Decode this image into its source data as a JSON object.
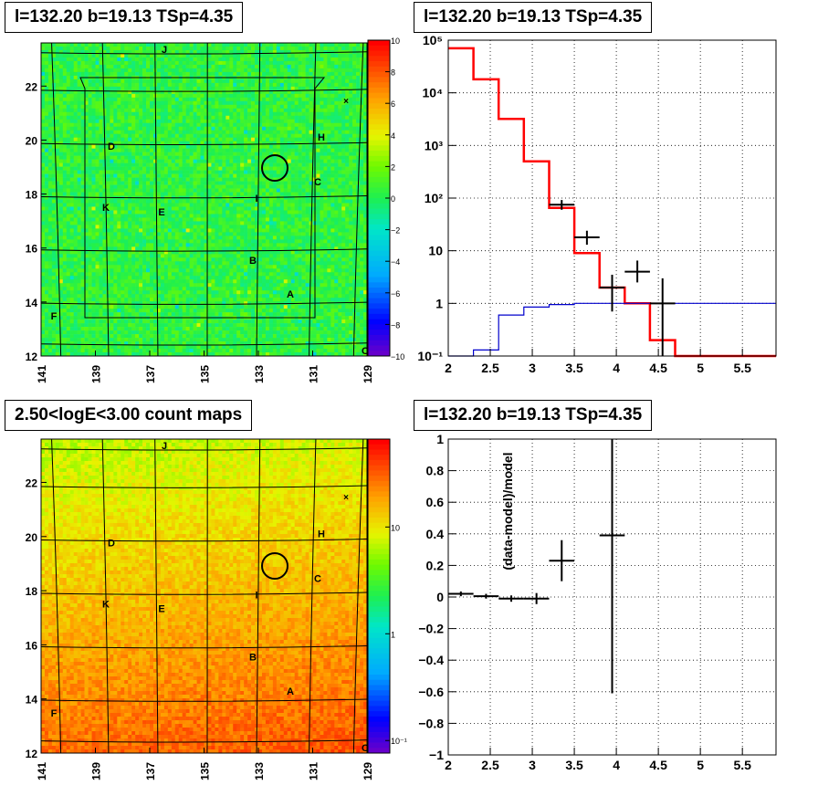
{
  "titles": {
    "tl": "l=132.20 b=19.13 TSp=4.35",
    "tr": "l=132.20 b=19.13 TSp=4.35",
    "bl": "2.50<logE<3.00 count maps",
    "br": "l=132.20 b=19.13 TSp=4.35"
  },
  "colors": {
    "model": "#ff0000",
    "background": "#0000cc",
    "data": "#000000",
    "grid": "#000000"
  },
  "chart_data": [
    {
      "type": "heatmap",
      "name": "significance map",
      "x_ticks": [
        "141",
        "139",
        "137",
        "135",
        "133",
        "131",
        "129"
      ],
      "y_ticks": [
        "12",
        "14",
        "16",
        "18",
        "20",
        "22"
      ],
      "xlim": [
        141,
        129
      ],
      "ylim": [
        12,
        23.6
      ],
      "colorbar_ticks": [
        "10",
        "8",
        "6",
        "4",
        "2",
        "0",
        "−2",
        "−4",
        "−6",
        "−8",
        "−10"
      ],
      "zlim": [
        -10,
        10
      ],
      "labels": [
        "J",
        "D",
        "H",
        "C",
        "K",
        "E",
        "I",
        "B",
        "A",
        "F",
        "×",
        "C"
      ]
    },
    {
      "type": "line",
      "name": "energy spectrum",
      "log_y": true,
      "xlim": [
        2,
        5.9
      ],
      "ylim": [
        0.1,
        100000
      ],
      "x_ticks": [
        "2",
        "2.5",
        "3",
        "3.5",
        "4",
        "4.5",
        "5",
        "5.5"
      ],
      "y_ticks": [
        "10⁵",
        "10⁴",
        "10³",
        "10²",
        "10",
        "1",
        "10⁻¹"
      ],
      "grid": true,
      "series": [
        {
          "kind": "model_step",
          "edges": [
            2.0,
            2.3,
            2.6,
            2.9,
            3.2,
            3.5,
            3.8,
            4.1,
            4.4,
            4.7,
            5.9
          ],
          "values": [
            70000,
            18000,
            3200,
            500,
            65,
            9,
            2,
            1,
            0.2,
            0.1
          ]
        },
        {
          "kind": "background_step",
          "edges": [
            2.0,
            2.3,
            2.6,
            2.9,
            3.2,
            3.5,
            3.8,
            4.1,
            4.4,
            4.7,
            5.9
          ],
          "values": [
            0.07,
            0.13,
            0.6,
            0.85,
            0.95,
            1,
            1,
            1,
            1,
            1
          ]
        },
        {
          "kind": "data_points",
          "x": [
            3.35,
            3.65,
            3.95,
            4.25,
            4.55
          ],
          "y": [
            75,
            18,
            2,
            4,
            1
          ],
          "xerr": [
            0.15,
            0.15,
            0.15,
            0.15,
            0.15
          ],
          "ylo": [
            60,
            13,
            0.7,
            2.5,
            0.1
          ],
          "yhi": [
            92,
            24,
            3.5,
            6.5,
            3
          ]
        }
      ]
    },
    {
      "type": "heatmap",
      "name": "count map",
      "x_ticks": [
        "141",
        "139",
        "137",
        "135",
        "133",
        "131",
        "129"
      ],
      "y_ticks": [
        "12",
        "14",
        "16",
        "18",
        "20",
        "22"
      ],
      "xlim": [
        141,
        129
      ],
      "ylim": [
        12,
        23.6
      ],
      "colorbar_ticks": [
        "10",
        "1",
        "10⁻¹"
      ],
      "log_z": true,
      "labels": [
        "J",
        "D",
        "H",
        "C",
        "K",
        "E",
        "I",
        "B",
        "A",
        "F",
        "×",
        "C"
      ]
    },
    {
      "type": "scatter",
      "name": "residuals",
      "xlim": [
        2,
        5.9
      ],
      "ylim": [
        -1,
        1
      ],
      "x_ticks": [
        "2",
        "2.5",
        "3",
        "3.5",
        "4",
        "4.5",
        "5",
        "5.5"
      ],
      "y_ticks": [
        "1",
        "0.8",
        "0.6",
        "0.4",
        "0.2",
        "0",
        "−0.2",
        "−0.4",
        "−0.6",
        "−0.8",
        "−1"
      ],
      "ylabel": "(data-model)/model",
      "grid": true,
      "x": [
        2.15,
        2.45,
        2.75,
        3.05,
        3.35,
        3.95
      ],
      "y": [
        0.02,
        0.005,
        -0.01,
        -0.01,
        0.23,
        0.39
      ],
      "xerr": [
        0.15,
        0.15,
        0.15,
        0.15,
        0.15,
        0.15
      ],
      "yerr": [
        0.015,
        0.015,
        0.02,
        0.035,
        0.13,
        1.0
      ]
    }
  ]
}
